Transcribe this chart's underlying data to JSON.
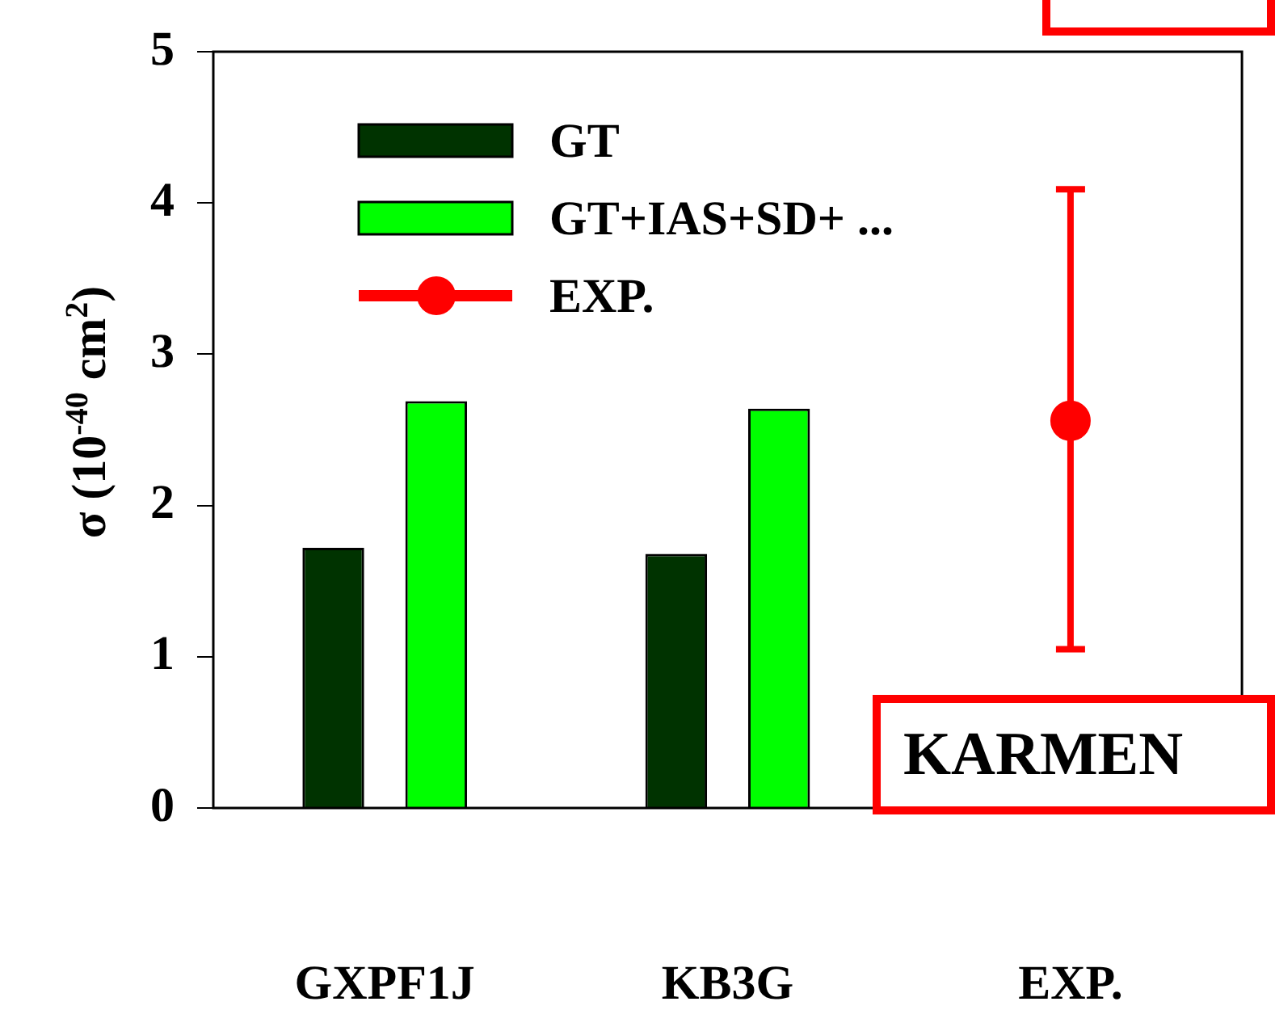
{
  "chart_data": {
    "type": "bar",
    "ylabel": "σ (10$^{-40}$ cm$^{2}$)",
    "categories": [
      "GXPF1J",
      "KB3G",
      "EXP."
    ],
    "series": [
      {
        "name": "GT",
        "color": "#003300",
        "values": [
          1.72,
          1.68,
          null
        ]
      },
      {
        "name": "GT+IAS+SD+ ...",
        "color": "#00ff00",
        "values": [
          2.69,
          2.64,
          null
        ]
      },
      {
        "name": "EXP.",
        "type": "scatter",
        "color": "#ff0000",
        "marker": "circle",
        "values": [
          null,
          null,
          2.56
        ],
        "errors": [
          null,
          null,
          [
            1.05,
            4.09
          ]
        ]
      }
    ],
    "ylim": [
      0,
      5
    ],
    "yticks": [
      0,
      1,
      2,
      3,
      4,
      5
    ],
    "grid": false,
    "legend": "top left",
    "annotations": [
      "KARMEN"
    ]
  }
}
